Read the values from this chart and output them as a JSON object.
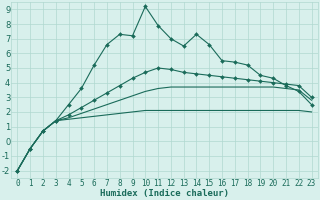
{
  "xlabel": "Humidex (Indice chaleur)",
  "x_values": [
    0,
    1,
    2,
    3,
    4,
    5,
    6,
    7,
    8,
    9,
    10,
    11,
    12,
    13,
    14,
    15,
    16,
    17,
    18,
    19,
    20,
    21,
    22,
    23
  ],
  "line1_y": [
    -2.0,
    -0.5,
    0.7,
    1.4,
    2.5,
    3.6,
    5.2,
    6.6,
    7.3,
    7.2,
    9.2,
    7.9,
    7.0,
    6.5,
    7.3,
    6.6,
    5.5,
    5.4,
    5.2,
    4.5,
    4.3,
    3.8,
    3.4,
    2.5
  ],
  "line2_y": [
    -2.0,
    -0.5,
    0.7,
    1.4,
    1.8,
    2.3,
    2.8,
    3.3,
    3.8,
    4.3,
    4.7,
    5.0,
    4.9,
    4.7,
    4.6,
    4.5,
    4.4,
    4.3,
    4.2,
    4.1,
    4.0,
    3.9,
    3.8,
    3.0
  ],
  "line3_y": [
    -2.0,
    -0.5,
    0.7,
    1.4,
    1.6,
    1.9,
    2.2,
    2.5,
    2.8,
    3.1,
    3.4,
    3.6,
    3.7,
    3.7,
    3.7,
    3.7,
    3.7,
    3.7,
    3.7,
    3.7,
    3.7,
    3.6,
    3.5,
    2.8
  ],
  "line4_y": [
    -2.0,
    -0.5,
    0.7,
    1.4,
    1.5,
    1.6,
    1.7,
    1.8,
    1.9,
    2.0,
    2.1,
    2.1,
    2.1,
    2.1,
    2.1,
    2.1,
    2.1,
    2.1,
    2.1,
    2.1,
    2.1,
    2.1,
    2.1,
    2.0
  ],
  "line_color": "#1a6b5a",
  "bg_color": "#d8f0ec",
  "grid_color": "#b0d8d0",
  "ylim": [
    -2,
    9
  ],
  "xlim": [
    0,
    23
  ],
  "yticks": [
    -2,
    -1,
    0,
    1,
    2,
    3,
    4,
    5,
    6,
    7,
    8,
    9
  ],
  "xticks": [
    0,
    1,
    2,
    3,
    4,
    5,
    6,
    7,
    8,
    9,
    10,
    11,
    12,
    13,
    14,
    15,
    16,
    17,
    18,
    19,
    20,
    21,
    22,
    23
  ],
  "xlabel_fontsize": 6.5,
  "tick_fontsize": 5.5
}
